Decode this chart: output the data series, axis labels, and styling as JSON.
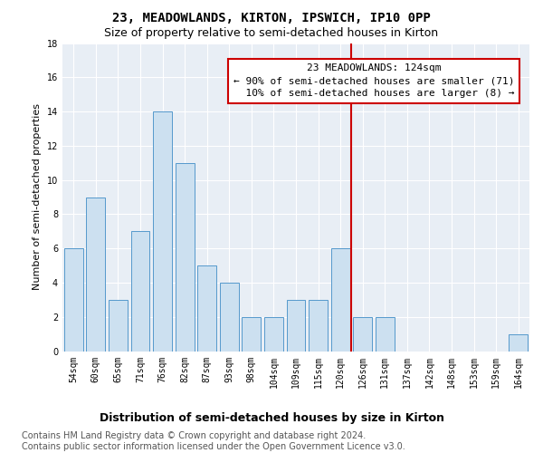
{
  "title": "23, MEADOWLANDS, KIRTON, IPSWICH, IP10 0PP",
  "subtitle": "Size of property relative to semi-detached houses in Kirton",
  "xlabel_bottom": "Distribution of semi-detached houses by size in Kirton",
  "ylabel": "Number of semi-detached properties",
  "categories": [
    "54sqm",
    "60sqm",
    "65sqm",
    "71sqm",
    "76sqm",
    "82sqm",
    "87sqm",
    "93sqm",
    "98sqm",
    "104sqm",
    "109sqm",
    "115sqm",
    "120sqm",
    "126sqm",
    "131sqm",
    "137sqm",
    "142sqm",
    "148sqm",
    "153sqm",
    "159sqm",
    "164sqm"
  ],
  "values": [
    6,
    9,
    3,
    7,
    14,
    11,
    5,
    4,
    2,
    2,
    3,
    3,
    6,
    2,
    2,
    0,
    0,
    0,
    0,
    0,
    1
  ],
  "bar_color": "#cce0f0",
  "bar_edge_color": "#5599cc",
  "vline_index": 13,
  "vline_color": "#cc0000",
  "box_color": "#cc0000",
  "annotation_title": "23 MEADOWLANDS: 124sqm",
  "annotation_line1": "← 90% of semi-detached houses are smaller (71)",
  "annotation_line2": "  10% of semi-detached houses are larger (8) →",
  "ylim": [
    0,
    18
  ],
  "yticks": [
    0,
    2,
    4,
    6,
    8,
    10,
    12,
    14,
    16,
    18
  ],
  "background_color": "#e8eef5",
  "footer": "Contains HM Land Registry data © Crown copyright and database right 2024.\nContains public sector information licensed under the Open Government Licence v3.0.",
  "title_fontsize": 10,
  "subtitle_fontsize": 9,
  "ylabel_fontsize": 8,
  "xlabel_bottom_fontsize": 9,
  "tick_fontsize": 7,
  "annotation_fontsize": 8,
  "footer_fontsize": 7
}
